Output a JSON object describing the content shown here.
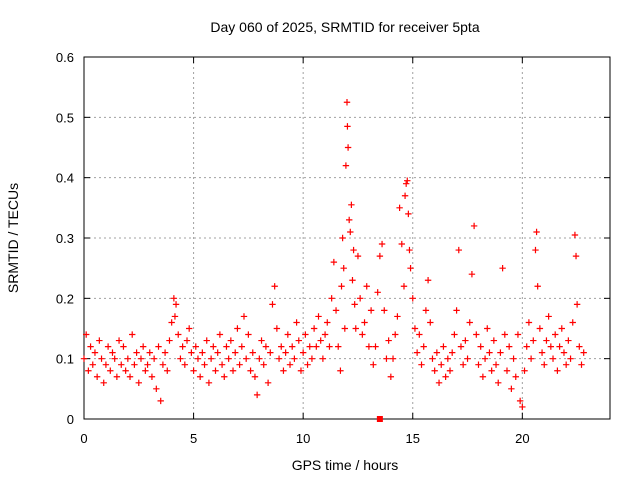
{
  "chart_data": {
    "type": "scatter",
    "title": "Day 060 of 2025, SRMTID for receiver 5pta",
    "xlabel": "GPS time / hours",
    "ylabel": "SRMTID / TECUs",
    "xlim": [
      0,
      24
    ],
    "ylim": [
      0,
      0.6
    ],
    "xticks": [
      0,
      5,
      10,
      15,
      20
    ],
    "xtick_labels": [
      "0",
      "5",
      "10",
      "15",
      "20"
    ],
    "yticks": [
      0,
      0.1,
      0.2,
      0.3,
      0.4,
      0.5,
      0.6
    ],
    "ytick_labels": [
      "0",
      "0.1",
      "0.2",
      "0.3",
      "0.4",
      "0.5",
      "0.6"
    ],
    "grid": true,
    "marker": "plus",
    "color": "#ff0000",
    "series": [
      {
        "name": "SRMTID",
        "points": [
          [
            0.0,
            0.1
          ],
          [
            0.1,
            0.14
          ],
          [
            0.2,
            0.08
          ],
          [
            0.3,
            0.12
          ],
          [
            0.4,
            0.09
          ],
          [
            0.5,
            0.11
          ],
          [
            0.6,
            0.07
          ],
          [
            0.7,
            0.13
          ],
          [
            0.8,
            0.1
          ],
          [
            0.9,
            0.06
          ],
          [
            1.0,
            0.09
          ],
          [
            1.1,
            0.12
          ],
          [
            1.2,
            0.08
          ],
          [
            1.3,
            0.11
          ],
          [
            1.4,
            0.1
          ],
          [
            1.5,
            0.07
          ],
          [
            1.6,
            0.13
          ],
          [
            1.7,
            0.09
          ],
          [
            1.8,
            0.12
          ],
          [
            1.9,
            0.08
          ],
          [
            2.0,
            0.1
          ],
          [
            2.1,
            0.07
          ],
          [
            2.2,
            0.14
          ],
          [
            2.3,
            0.09
          ],
          [
            2.4,
            0.11
          ],
          [
            2.5,
            0.06
          ],
          [
            2.6,
            0.1
          ],
          [
            2.7,
            0.12
          ],
          [
            2.8,
            0.08
          ],
          [
            2.9,
            0.09
          ],
          [
            3.0,
            0.11
          ],
          [
            3.1,
            0.07
          ],
          [
            3.2,
            0.1
          ],
          [
            3.3,
            0.05
          ],
          [
            3.4,
            0.12
          ],
          [
            3.5,
            0.03
          ],
          [
            3.6,
            0.09
          ],
          [
            3.7,
            0.11
          ],
          [
            3.8,
            0.08
          ],
          [
            3.9,
            0.13
          ],
          [
            4.0,
            0.16
          ],
          [
            4.1,
            0.2
          ],
          [
            4.15,
            0.17
          ],
          [
            4.2,
            0.19
          ],
          [
            4.3,
            0.14
          ],
          [
            4.4,
            0.1
          ],
          [
            4.5,
            0.12
          ],
          [
            4.6,
            0.09
          ],
          [
            4.7,
            0.13
          ],
          [
            4.8,
            0.15
          ],
          [
            4.9,
            0.11
          ],
          [
            5.0,
            0.08
          ],
          [
            5.1,
            0.12
          ],
          [
            5.2,
            0.1
          ],
          [
            5.3,
            0.07
          ],
          [
            5.4,
            0.11
          ],
          [
            5.5,
            0.09
          ],
          [
            5.6,
            0.13
          ],
          [
            5.7,
            0.06
          ],
          [
            5.8,
            0.1
          ],
          [
            5.9,
            0.12
          ],
          [
            6.0,
            0.08
          ],
          [
            6.1,
            0.11
          ],
          [
            6.2,
            0.14
          ],
          [
            6.3,
            0.09
          ],
          [
            6.4,
            0.07
          ],
          [
            6.5,
            0.12
          ],
          [
            6.6,
            0.1
          ],
          [
            6.7,
            0.13
          ],
          [
            6.8,
            0.08
          ],
          [
            6.9,
            0.11
          ],
          [
            7.0,
            0.15
          ],
          [
            7.1,
            0.09
          ],
          [
            7.2,
            0.12
          ],
          [
            7.3,
            0.17
          ],
          [
            7.4,
            0.1
          ],
          [
            7.5,
            0.14
          ],
          [
            7.6,
            0.08
          ],
          [
            7.7,
            0.11
          ],
          [
            7.8,
            0.07
          ],
          [
            7.9,
            0.04
          ],
          [
            8.0,
            0.1
          ],
          [
            8.1,
            0.13
          ],
          [
            8.2,
            0.09
          ],
          [
            8.3,
            0.12
          ],
          [
            8.4,
            0.06
          ],
          [
            8.5,
            0.11
          ],
          [
            8.6,
            0.19
          ],
          [
            8.7,
            0.22
          ],
          [
            8.8,
            0.15
          ],
          [
            8.9,
            0.1
          ],
          [
            9.0,
            0.12
          ],
          [
            9.1,
            0.08
          ],
          [
            9.2,
            0.11
          ],
          [
            9.3,
            0.14
          ],
          [
            9.4,
            0.09
          ],
          [
            9.5,
            0.12
          ],
          [
            9.6,
            0.1
          ],
          [
            9.7,
            0.16
          ],
          [
            9.8,
            0.13
          ],
          [
            9.9,
            0.08
          ],
          [
            10.0,
            0.11
          ],
          [
            10.1,
            0.14
          ],
          [
            10.2,
            0.09
          ],
          [
            10.3,
            0.12
          ],
          [
            10.4,
            0.1
          ],
          [
            10.5,
            0.15
          ],
          [
            10.6,
            0.12
          ],
          [
            10.7,
            0.17
          ],
          [
            10.8,
            0.13
          ],
          [
            10.9,
            0.1
          ],
          [
            11.0,
            0.14
          ],
          [
            11.1,
            0.16
          ],
          [
            11.2,
            0.12
          ],
          [
            11.3,
            0.2
          ],
          [
            11.4,
            0.26
          ],
          [
            11.5,
            0.18
          ],
          [
            11.6,
            0.12
          ],
          [
            11.7,
            0.08
          ],
          [
            11.75,
            0.22
          ],
          [
            11.8,
            0.3
          ],
          [
            11.85,
            0.25
          ],
          [
            11.9,
            0.15
          ],
          [
            11.95,
            0.42
          ],
          [
            12.0,
            0.525
          ],
          [
            12.02,
            0.485
          ],
          [
            12.05,
            0.45
          ],
          [
            12.1,
            0.33
          ],
          [
            12.15,
            0.31
          ],
          [
            12.2,
            0.355
          ],
          [
            12.25,
            0.23
          ],
          [
            12.3,
            0.28
          ],
          [
            12.35,
            0.19
          ],
          [
            12.4,
            0.15
          ],
          [
            12.5,
            0.27
          ],
          [
            12.6,
            0.2
          ],
          [
            12.7,
            0.14
          ],
          [
            12.8,
            0.16
          ],
          [
            12.9,
            0.22
          ],
          [
            13.0,
            0.12
          ],
          [
            13.1,
            0.18
          ],
          [
            13.2,
            0.09
          ],
          [
            13.3,
            0.12
          ],
          [
            13.4,
            0.21
          ],
          [
            13.5,
            0.27
          ],
          [
            13.6,
            0.29
          ],
          [
            13.7,
            0.18
          ],
          [
            13.8,
            0.1
          ],
          [
            13.9,
            0.13
          ],
          [
            14.0,
            0.07
          ],
          [
            14.1,
            0.1
          ],
          [
            14.2,
            0.14
          ],
          [
            14.3,
            0.17
          ],
          [
            14.4,
            0.35
          ],
          [
            14.5,
            0.29
          ],
          [
            14.6,
            0.22
          ],
          [
            14.65,
            0.37
          ],
          [
            14.7,
            0.39
          ],
          [
            14.75,
            0.395
          ],
          [
            14.8,
            0.34
          ],
          [
            14.85,
            0.28
          ],
          [
            14.9,
            0.25
          ],
          [
            15.0,
            0.2
          ],
          [
            15.1,
            0.15
          ],
          [
            15.2,
            0.11
          ],
          [
            15.3,
            0.14
          ],
          [
            15.4,
            0.09
          ],
          [
            15.5,
            0.12
          ],
          [
            15.6,
            0.18
          ],
          [
            15.7,
            0.23
          ],
          [
            15.8,
            0.16
          ],
          [
            15.9,
            0.1
          ],
          [
            16.0,
            0.08
          ],
          [
            16.1,
            0.11
          ],
          [
            16.2,
            0.06
          ],
          [
            16.3,
            0.09
          ],
          [
            16.4,
            0.12
          ],
          [
            16.5,
            0.07
          ],
          [
            16.6,
            0.1
          ],
          [
            16.7,
            0.08
          ],
          [
            16.8,
            0.11
          ],
          [
            16.9,
            0.14
          ],
          [
            17.0,
            0.18
          ],
          [
            17.1,
            0.28
          ],
          [
            17.2,
            0.12
          ],
          [
            17.3,
            0.09
          ],
          [
            17.4,
            0.13
          ],
          [
            17.5,
            0.1
          ],
          [
            17.6,
            0.16
          ],
          [
            17.7,
            0.24
          ],
          [
            17.8,
            0.32
          ],
          [
            17.9,
            0.14
          ],
          [
            18.0,
            0.09
          ],
          [
            18.1,
            0.12
          ],
          [
            18.2,
            0.07
          ],
          [
            18.3,
            0.1
          ],
          [
            18.4,
            0.15
          ],
          [
            18.5,
            0.11
          ],
          [
            18.6,
            0.08
          ],
          [
            18.7,
            0.13
          ],
          [
            18.8,
            0.09
          ],
          [
            18.9,
            0.06
          ],
          [
            19.0,
            0.11
          ],
          [
            19.1,
            0.25
          ],
          [
            19.2,
            0.14
          ],
          [
            19.3,
            0.08
          ],
          [
            19.4,
            0.12
          ],
          [
            19.5,
            0.05
          ],
          [
            19.6,
            0.1
          ],
          [
            19.7,
            0.07
          ],
          [
            19.8,
            0.14
          ],
          [
            19.9,
            0.03
          ],
          [
            20.0,
            0.02
          ],
          [
            20.1,
            0.08
          ],
          [
            20.2,
            0.12
          ],
          [
            20.3,
            0.16
          ],
          [
            20.4,
            0.1
          ],
          [
            20.5,
            0.13
          ],
          [
            20.6,
            0.28
          ],
          [
            20.65,
            0.31
          ],
          [
            20.7,
            0.22
          ],
          [
            20.8,
            0.15
          ],
          [
            20.9,
            0.11
          ],
          [
            21.0,
            0.09
          ],
          [
            21.1,
            0.13
          ],
          [
            21.2,
            0.17
          ],
          [
            21.3,
            0.12
          ],
          [
            21.4,
            0.1
          ],
          [
            21.5,
            0.14
          ],
          [
            21.6,
            0.08
          ],
          [
            21.7,
            0.12
          ],
          [
            21.8,
            0.15
          ],
          [
            21.9,
            0.11
          ],
          [
            22.0,
            0.09
          ],
          [
            22.1,
            0.13
          ],
          [
            22.2,
            0.1
          ],
          [
            22.3,
            0.16
          ],
          [
            22.4,
            0.305
          ],
          [
            22.45,
            0.27
          ],
          [
            22.5,
            0.19
          ],
          [
            22.6,
            0.12
          ],
          [
            22.7,
            0.09
          ],
          [
            22.8,
            0.11
          ]
        ]
      }
    ],
    "outlier_square": [
      13.5,
      0.0
    ]
  }
}
